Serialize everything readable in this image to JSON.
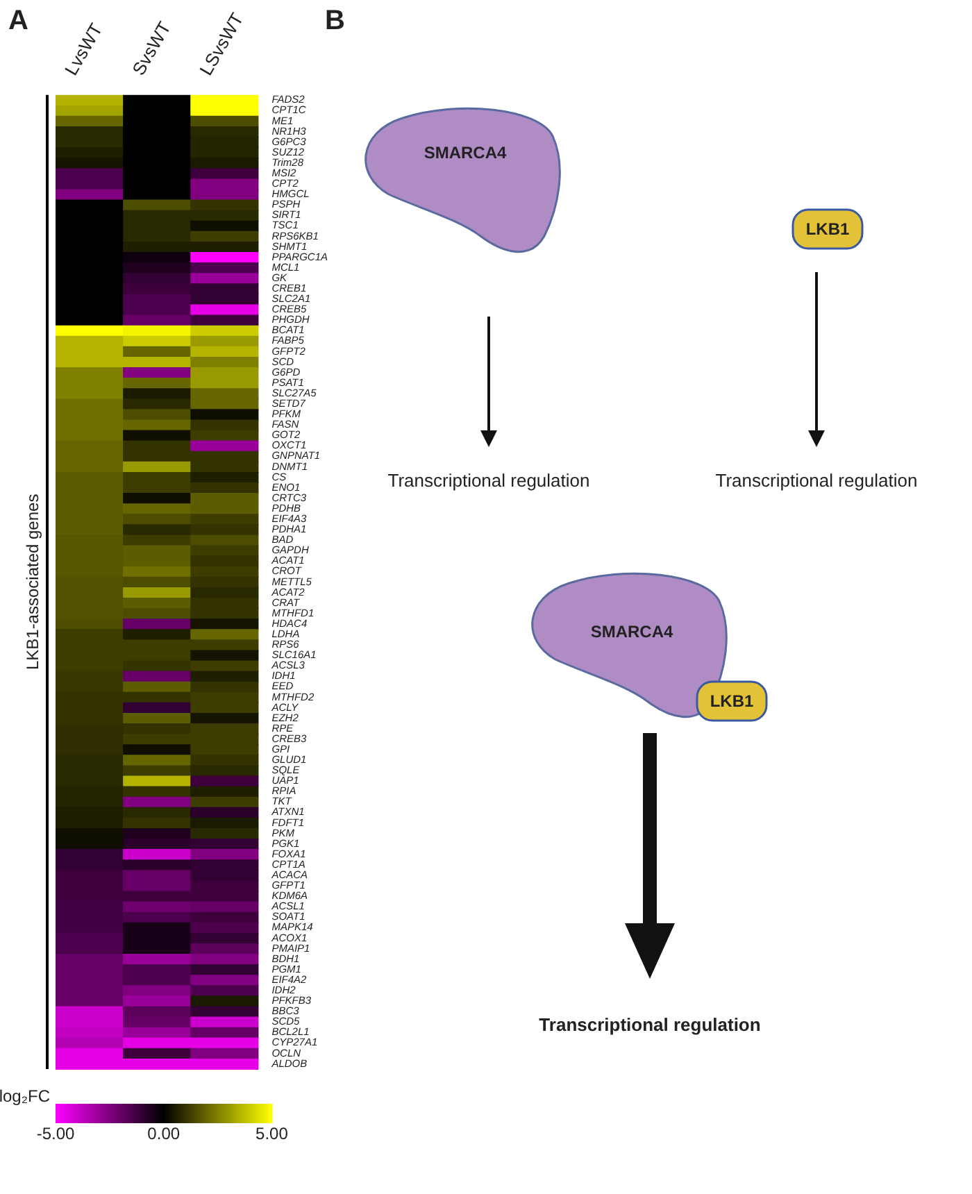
{
  "chart_data": {
    "type": "heatmap",
    "ylabel": "LKB1-associated genes",
    "clabel": "log₂FC",
    "categories": [
      "LvsWT",
      "SvsWT",
      "LSvsWT"
    ],
    "y_categories": [
      "FADS2",
      "CPT1C",
      "ME1",
      "NR1H3",
      "G6PC3",
      "SUZ12",
      "Trim28",
      "MSI2",
      "CPT2",
      "HMGCL",
      "PSPH",
      "SIRT1",
      "TSC1",
      "RPS6KB1",
      "SHMT1",
      "PPARGC1A",
      "MCL1",
      "GK",
      "CREB1",
      "SLC2A1",
      "CREB5",
      "PHGDH",
      "BCAT1",
      "FABP5",
      "GFPT2",
      "SCD",
      "G6PD",
      "PSAT1",
      "SLC27A5",
      "SETD7",
      "PFKM",
      "FASN",
      "GOT2",
      "OXCT1",
      "GNPNAT1",
      "DNMT1",
      "CS",
      "ENO1",
      "CRTC3",
      "PDHB",
      "EIF4A3",
      "PDHA1",
      "BAD",
      "GAPDH",
      "ACAT1",
      "CROT",
      "METTL5",
      "ACAT2",
      "CRAT",
      "MTHFD1",
      "HDAC4",
      "LDHA",
      "RPS6",
      "SLC16A1",
      "ACSL3",
      "IDH1",
      "EED",
      "MTHFD2",
      "ACLY",
      "EZH2",
      "RPE",
      "CREB3",
      "GPI",
      "GLUD1",
      "SQLE",
      "UAP1",
      "RPIA",
      "TKT",
      "ATXN1",
      "FDFT1",
      "PKM",
      "PGK1",
      "FOXA1",
      "CPT1A",
      "ACACA",
      "GFPT1",
      "KDM6A",
      "ACSL1",
      "SOAT1",
      "MAPK14",
      "ACOX1",
      "PMAIP1",
      "BDH1",
      "PGM1",
      "EIF4A2",
      "IDH2",
      "PFKFB3",
      "BBC3",
      "SCD5",
      "BCL2L1",
      "CYP27A1",
      "OCLN",
      "ALDOB"
    ],
    "cells": [
      [
        3.5,
        0,
        5
      ],
      [
        3.2,
        0,
        5
      ],
      [
        2,
        0,
        1.5
      ],
      [
        0.8,
        0,
        0.8
      ],
      [
        0.8,
        0,
        0.7
      ],
      [
        0.6,
        0,
        0.7
      ],
      [
        0.4,
        0,
        0.5
      ],
      [
        -1.5,
        0,
        -1.2
      ],
      [
        -1.5,
        0,
        -2.5
      ],
      [
        -2.5,
        0,
        -2.5
      ],
      [
        0,
        1.5,
        1
      ],
      [
        0,
        0.8,
        0.8
      ],
      [
        0,
        0.8,
        0.3
      ],
      [
        0,
        0.8,
        1.2
      ],
      [
        0,
        0.6,
        0.6
      ],
      [
        0,
        -0.3,
        -5
      ],
      [
        0,
        -0.6,
        -1.5
      ],
      [
        0,
        -1,
        -3
      ],
      [
        0,
        -1.2,
        -1
      ],
      [
        0,
        -1.5,
        -1
      ],
      [
        0,
        -1.5,
        -4.5
      ],
      [
        0,
        -2,
        -1.2
      ],
      [
        5,
        4.8,
        4
      ],
      [
        3.5,
        4,
        3
      ],
      [
        3.5,
        2,
        3.5
      ],
      [
        3.5,
        3.5,
        2.5
      ],
      [
        2.5,
        -2.5,
        3
      ],
      [
        2.5,
        2,
        3
      ],
      [
        2.5,
        0.5,
        2
      ],
      [
        2.2,
        0.8,
        2
      ],
      [
        2.2,
        1.5,
        0.3
      ],
      [
        2.2,
        2,
        1
      ],
      [
        2.2,
        0.3,
        1.2
      ],
      [
        2,
        1,
        -3
      ],
      [
        2,
        1,
        1
      ],
      [
        2,
        3,
        1
      ],
      [
        1.8,
        1.2,
        0.6
      ],
      [
        1.8,
        1.2,
        1
      ],
      [
        1.8,
        0.3,
        1.8
      ],
      [
        1.8,
        2,
        1.8
      ],
      [
        1.8,
        1.5,
        1.2
      ],
      [
        1.8,
        0.8,
        1
      ],
      [
        1.7,
        1.2,
        1.5
      ],
      [
        1.7,
        1.8,
        1.2
      ],
      [
        1.7,
        1.8,
        1
      ],
      [
        1.7,
        2.2,
        1.2
      ],
      [
        1.6,
        1.5,
        1
      ],
      [
        1.6,
        3,
        0.8
      ],
      [
        1.6,
        1.8,
        1
      ],
      [
        1.6,
        1.5,
        1
      ],
      [
        1.5,
        -2,
        0.4
      ],
      [
        1.2,
        0.6,
        2
      ],
      [
        1.2,
        1.2,
        1.2
      ],
      [
        1.2,
        1.2,
        0.4
      ],
      [
        1.2,
        1,
        1.2
      ],
      [
        1.1,
        -2,
        0.6
      ],
      [
        1.1,
        1.8,
        1
      ],
      [
        1,
        1,
        1.2
      ],
      [
        1,
        -1,
        1.2
      ],
      [
        1,
        1.8,
        0.4
      ],
      [
        0.9,
        1,
        1.2
      ],
      [
        0.9,
        1.2,
        1.2
      ],
      [
        0.9,
        0.3,
        1.2
      ],
      [
        0.8,
        2,
        1
      ],
      [
        0.8,
        1.2,
        0.8
      ],
      [
        0.8,
        3.5,
        -1.2
      ],
      [
        0.7,
        1,
        0.6
      ],
      [
        0.7,
        -2.5,
        1.2
      ],
      [
        0.6,
        0.8,
        -0.8
      ],
      [
        0.6,
        1,
        0.5
      ],
      [
        0.3,
        -0.6,
        0.8
      ],
      [
        0.3,
        -0.8,
        -1
      ],
      [
        -1,
        -4,
        -2.5
      ],
      [
        -1,
        -0.8,
        -1
      ],
      [
        -1.2,
        -2,
        -1
      ],
      [
        -1.2,
        -2,
        -1.2
      ],
      [
        -1.2,
        -1.2,
        -1.2
      ],
      [
        -1.3,
        -2.2,
        -2
      ],
      [
        -1.3,
        -1.5,
        -1.2
      ],
      [
        -1.3,
        -0.5,
        -1.5
      ],
      [
        -1.5,
        -0.5,
        -1
      ],
      [
        -1.5,
        -0.5,
        -1.8
      ],
      [
        -2,
        -3,
        -2.5
      ],
      [
        -2,
        -1.5,
        -1
      ],
      [
        -2,
        -1.5,
        -2.5
      ],
      [
        -2,
        -2.5,
        -1.5
      ],
      [
        -2,
        -3,
        0.5
      ],
      [
        -4,
        -1.8,
        -1
      ],
      [
        -4,
        -2,
        -4
      ],
      [
        -3.8,
        -3,
        -2
      ],
      [
        -3.5,
        -4.5,
        -4.5
      ],
      [
        -4.5,
        -1.2,
        -2.5
      ],
      [
        -4.5,
        -4.5,
        -4.5
      ]
    ],
    "clim": [
      -5,
      5
    ],
    "cticks": [
      {
        "value": -5,
        "label": "-5.00"
      },
      {
        "value": 0,
        "label": "0.00"
      },
      {
        "value": 5,
        "label": "5.00"
      }
    ],
    "annotations": [
      "A",
      "B",
      "SMARCA4",
      "LKB1",
      "Transcriptional regulation",
      "Transcriptional regulation",
      "SMARCA4",
      "LKB1",
      "Transcriptional regulation"
    ]
  }
}
